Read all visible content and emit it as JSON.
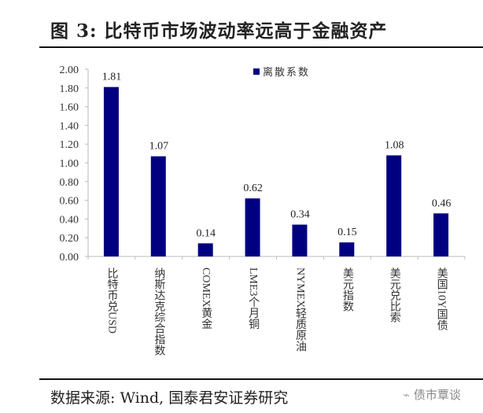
{
  "title": "图  3:  比特币市场波动率远高于金融资产",
  "source": "数据来源:  Wind,  国泰君安证券研究",
  "watermark": "债市覃谈",
  "chart_data": {
    "type": "bar",
    "title": "图  3:  比特币市场波动率远高于金融资产",
    "categories": [
      "比特币兑USD",
      "纳斯达克综合指数",
      "COMEX黄金",
      "LME3个月铜",
      "NYMEX轻质原油",
      "美元指数",
      "美元兑比索",
      "美国10Y国债"
    ],
    "series": [
      {
        "name": "离散系数",
        "values": [
          1.81,
          1.07,
          0.14,
          0.62,
          0.34,
          0.15,
          1.08,
          0.46
        ]
      }
    ],
    "value_labels": [
      "1.81",
      "1.07",
      "0.14",
      "0.62",
      "0.34",
      "0.15",
      "1.08",
      "0.46"
    ],
    "yticks": [
      "0.00",
      "0.20",
      "0.40",
      "0.60",
      "0.80",
      "1.00",
      "1.20",
      "1.40",
      "1.60",
      "1.80",
      "2.00"
    ],
    "ylim": [
      0,
      2
    ],
    "legend": "top-center",
    "bar_color": "#000080",
    "grid": false
  }
}
